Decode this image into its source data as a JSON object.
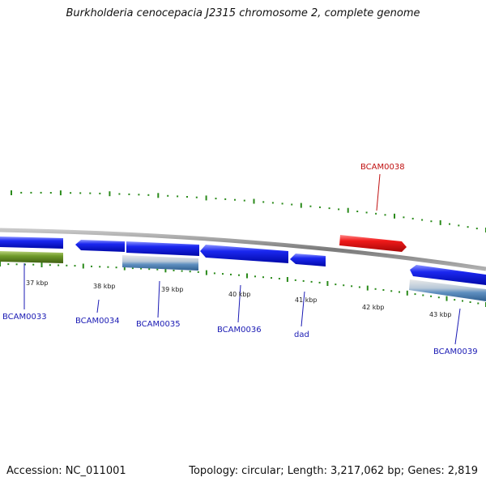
{
  "title": "Burkholderia cenocepacia J2315 chromosome 2, complete genome",
  "footer": {
    "accession_label": "Accession:",
    "accession": "NC_011001",
    "topology_label": "Topology:",
    "topology": "circular",
    "length_label": "Length:",
    "length": "3,217,062 bp",
    "genes_label": "Genes:",
    "genes": "2,819"
  },
  "colors": {
    "backbone": "#8a8a8a",
    "tick": "#2a8a1a",
    "gene_forward": "#0a16e8",
    "gene_highlight": "#e8141a",
    "gene_green": "#6f9a2a",
    "gene_steel": "#4a7fb5",
    "label_blue": "#1a1ab4",
    "label_red": "#c01010"
  },
  "scale_labels": [
    "37 kbp",
    "38 kbp",
    "39 kbp",
    "40 kbp",
    "41 kbp",
    "42 kbp",
    "43 kbp"
  ],
  "gene_labels": [
    {
      "name": "BCAM0033",
      "color": "blue"
    },
    {
      "name": "BCAM0034",
      "color": "blue"
    },
    {
      "name": "BCAM0035",
      "color": "blue"
    },
    {
      "name": "BCAM0036",
      "color": "blue"
    },
    {
      "name": "dad",
      "color": "blue"
    },
    {
      "name": "BCAM0038",
      "color": "red"
    },
    {
      "name": "BCAM0039",
      "color": "blue"
    }
  ]
}
